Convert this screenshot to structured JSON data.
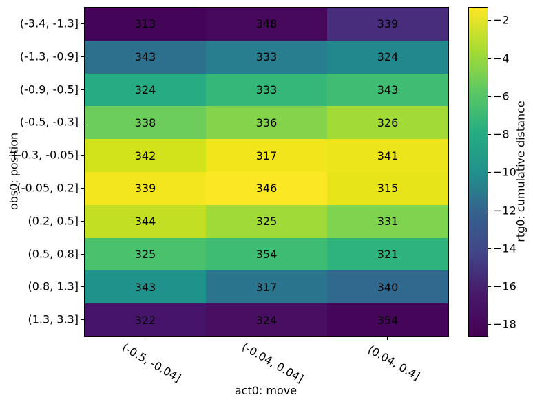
{
  "chart_data": {
    "type": "heatmap",
    "title": "",
    "xlabel": "act0: move",
    "ylabel": "obs0: position",
    "x_categories": [
      "(-0.5, -0.04]",
      "(-0.04, 0.04]",
      "(0.04, 0.4]"
    ],
    "rows": [
      {
        "label": "(-3.4, -1.3]",
        "values": [
          313,
          348,
          339
        ],
        "colors": [
          "#440457",
          "#46095c",
          "#472d7b"
        ]
      },
      {
        "label": "(-1.3, -0.9]",
        "values": [
          343,
          333,
          324
        ],
        "colors": [
          "#2d708e",
          "#287d8e",
          "#23888e"
        ]
      },
      {
        "label": "(-0.9, -0.5]",
        "values": [
          324,
          333,
          343
        ],
        "colors": [
          "#26ab82",
          "#35b779",
          "#40bd72"
        ]
      },
      {
        "label": "(-0.5, -0.3]",
        "values": [
          338,
          336,
          326
        ],
        "colors": [
          "#6ccd5a",
          "#84d34b",
          "#a2da37"
        ]
      },
      {
        "label": "(-0.3, -0.05]",
        "values": [
          342,
          317,
          341
        ],
        "colors": [
          "#d2e21b",
          "#f1e51c",
          "#ece51b"
        ]
      },
      {
        "label": "(-0.05, 0.2]",
        "values": [
          339,
          346,
          315
        ],
        "colors": [
          "#f4e61e",
          "#fbe723",
          "#e7e419"
        ]
      },
      {
        "label": "(0.2, 0.5]",
        "values": [
          344,
          325,
          331
        ],
        "colors": [
          "#c2df23",
          "#a0da39",
          "#7ed34f"
        ]
      },
      {
        "label": "(0.5, 0.8]",
        "values": [
          325,
          354,
          321
        ],
        "colors": [
          "#4ac16d",
          "#3fbc73",
          "#2eb37c"
        ]
      },
      {
        "label": "(0.8, 1.3]",
        "values": [
          343,
          317,
          340
        ],
        "colors": [
          "#20928c",
          "#2b748e",
          "#31688e"
        ]
      },
      {
        "label": "(1.3, 3.3]",
        "values": [
          322,
          324,
          354
        ],
        "colors": [
          "#46156b",
          "#470e61",
          "#450559"
        ]
      }
    ],
    "annotation_color": "#000000",
    "colorbar": {
      "label": "rtg0: cumulative distance",
      "tick_values": [
        -2,
        -4,
        -6,
        -8,
        -10,
        -12,
        -14,
        -16,
        -18
      ],
      "tick_labels": [
        "−2",
        "−4",
        "−6",
        "−8",
        "−10",
        "−12",
        "−14",
        "−16",
        "−18"
      ],
      "vmax": -1.3,
      "vmin": -18.6,
      "colormap": "viridis",
      "gradient_top_to_bottom": [
        "#fde725",
        "#aadc32",
        "#5ec962",
        "#27ad81",
        "#21918c",
        "#35608d",
        "#414487",
        "#48186a",
        "#440154"
      ]
    },
    "grid": false,
    "legend": "colorbar-right"
  }
}
